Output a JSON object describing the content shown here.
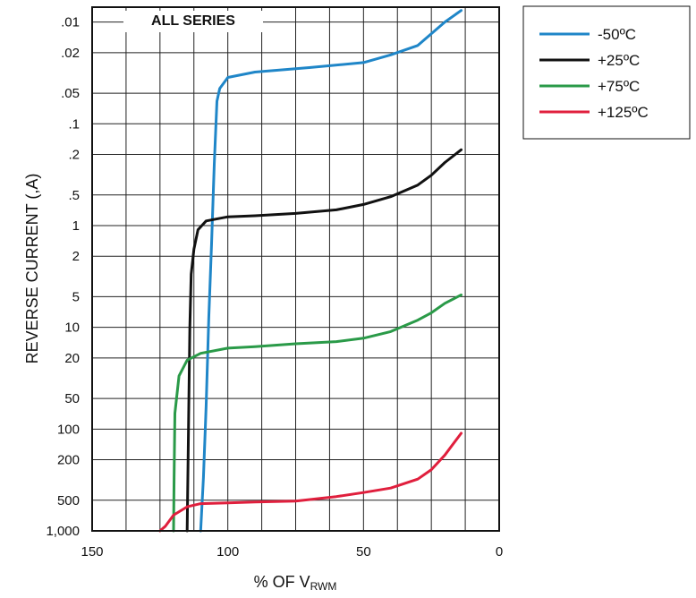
{
  "chart_data": {
    "type": "line",
    "title": "ALL SERIES",
    "xlabel": {
      "main": "% OF V",
      "subscript": "RWM"
    },
    "ylabel": "REVERSE CURRENT (,A)",
    "xlim": [
      150,
      0
    ],
    "x_ticks": [
      "150",
      "100",
      "50",
      "0"
    ],
    "y_scale": "log",
    "y_inverted": true,
    "ylim": [
      0.007,
      1000
    ],
    "y_ticks": [
      {
        "value": 0.01,
        "label": ".01"
      },
      {
        "value": 0.02,
        "label": ".02"
      },
      {
        "value": 0.05,
        "label": ".05"
      },
      {
        "value": 0.1,
        "label": ".1"
      },
      {
        "value": 0.2,
        "label": ".2"
      },
      {
        "value": 0.5,
        "label": ".5"
      },
      {
        "value": 1,
        "label": "1"
      },
      {
        "value": 2,
        "label": "2"
      },
      {
        "value": 5,
        "label": "5"
      },
      {
        "value": 10,
        "label": "10"
      },
      {
        "value": 20,
        "label": "20"
      },
      {
        "value": 50,
        "label": "50"
      },
      {
        "value": 100,
        "label": "100"
      },
      {
        "value": 200,
        "label": "200"
      },
      {
        "value": 500,
        "label": "500"
      },
      {
        "value": 1000,
        "label": "1,000"
      }
    ],
    "grid": true,
    "legend_position": "outside-top-right",
    "series": [
      {
        "name": "-50ºC",
        "color": "#1f86c8",
        "points": [
          [
            110,
            1000
          ],
          [
            109,
            300
          ],
          [
            108,
            60
          ],
          [
            107,
            8
          ],
          [
            106,
            1.5
          ],
          [
            105,
            0.25
          ],
          [
            104,
            0.06
          ],
          [
            103,
            0.045
          ],
          [
            100,
            0.035
          ],
          [
            90,
            0.031
          ],
          [
            70,
            0.028
          ],
          [
            50,
            0.025
          ],
          [
            40,
            0.021
          ],
          [
            30,
            0.017
          ],
          [
            25,
            0.013
          ],
          [
            20,
            0.01
          ],
          [
            14,
            0.0077
          ]
        ]
      },
      {
        "name": "+25ºC",
        "color": "#111111",
        "points": [
          [
            115,
            1000
          ],
          [
            114.5,
            100
          ],
          [
            114,
            10
          ],
          [
            113.5,
            3
          ],
          [
            112.5,
            1.7
          ],
          [
            111,
            1.1
          ],
          [
            108,
            0.9
          ],
          [
            100,
            0.82
          ],
          [
            90,
            0.8
          ],
          [
            75,
            0.76
          ],
          [
            60,
            0.7
          ],
          [
            50,
            0.62
          ],
          [
            40,
            0.52
          ],
          [
            30,
            0.4
          ],
          [
            25,
            0.32
          ],
          [
            20,
            0.24
          ],
          [
            14,
            0.18
          ]
        ]
      },
      {
        "name": "+75ºC",
        "color": "#2a9a48",
        "points": [
          [
            120,
            1000
          ],
          [
            119.8,
            300
          ],
          [
            119.5,
            70
          ],
          [
            118,
            30
          ],
          [
            115,
            21
          ],
          [
            110,
            18
          ],
          [
            100,
            16
          ],
          [
            90,
            15.5
          ],
          [
            75,
            14.5
          ],
          [
            60,
            13.8
          ],
          [
            50,
            12.8
          ],
          [
            40,
            11
          ],
          [
            30,
            8.5
          ],
          [
            25,
            7.2
          ],
          [
            20,
            5.8
          ],
          [
            14,
            4.8
          ]
        ]
      },
      {
        "name": "+125ºC",
        "color": "#e01f3d",
        "points": [
          [
            125,
            1000
          ],
          [
            123,
            900
          ],
          [
            120,
            700
          ],
          [
            115,
            580
          ],
          [
            110,
            540
          ],
          [
            100,
            530
          ],
          [
            90,
            520
          ],
          [
            75,
            510
          ],
          [
            60,
            460
          ],
          [
            50,
            420
          ],
          [
            40,
            380
          ],
          [
            30,
            310
          ],
          [
            25,
            250
          ],
          [
            20,
            180
          ],
          [
            14,
            110
          ]
        ]
      }
    ]
  }
}
